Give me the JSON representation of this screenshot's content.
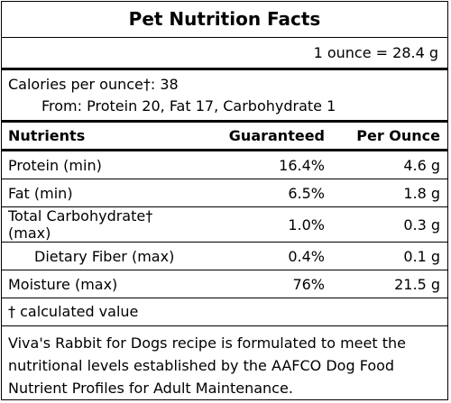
{
  "title": "Pet Nutrition Facts",
  "serving": "1 ounce = 28.4 g",
  "calories": {
    "line1": "Calories per ounce†: 38",
    "line2": "From: Protein 20, Fat 17, Carbohydrate 1"
  },
  "table": {
    "headers": {
      "nutrients": "Nutrients",
      "guaranteed": "Guaranteed",
      "per_ounce": "Per Ounce"
    },
    "rows": [
      {
        "name": "Protein (min)",
        "guaranteed": "16.4%",
        "per_ounce": "4.6 g"
      },
      {
        "name": "Fat (min)",
        "guaranteed": "6.5%",
        "per_ounce": "1.8 g"
      },
      {
        "name": "Total Carbohydrate† (max)",
        "guaranteed": "1.0%",
        "per_ounce": "0.3 g"
      },
      {
        "name": "Dietary Fiber (max)",
        "guaranteed": "0.4%",
        "per_ounce": "0.1 g"
      },
      {
        "name": "Moisture (max)",
        "guaranteed": "76%",
        "per_ounce": "21.5 g"
      }
    ]
  },
  "footnote": "† calculated value",
  "note": "Viva's Rabbit for Dogs recipe is formulated to meet the nutritional levels established by the AAFCO Dog Food Nutrient Profiles for Adult Maintenance."
}
